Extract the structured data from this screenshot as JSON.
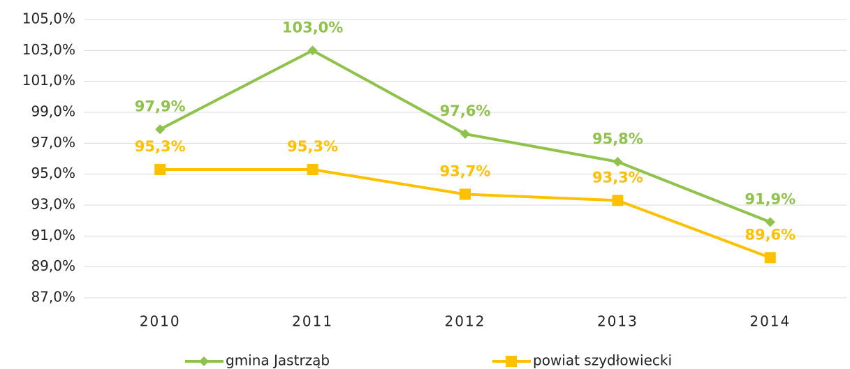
{
  "chart_data": {
    "type": "line",
    "categories": [
      "2010",
      "2011",
      "2012",
      "2013",
      "2014"
    ],
    "series": [
      {
        "name": "gmina Jastrząb",
        "color": "#8fc24a",
        "marker": "diamond",
        "values": [
          97.9,
          103.0,
          97.6,
          95.8,
          91.9
        ],
        "value_labels": [
          "97,9%",
          "103,0%",
          "97,6%",
          "95,8%",
          "91,9%"
        ]
      },
      {
        "name": "powiat szydłowiecki",
        "color": "#ffc000",
        "marker": "square",
        "values": [
          95.3,
          95.3,
          93.7,
          93.3,
          89.6
        ],
        "value_labels": [
          "95,3%",
          "95,3%",
          "93,7%",
          "93,3%",
          "89,6%"
        ]
      }
    ],
    "ylim": [
      87,
      105
    ],
    "yticks": [
      {
        "value": 87,
        "label": "87,0%"
      },
      {
        "value": 89,
        "label": "89,0%"
      },
      {
        "value": 91,
        "label": "91,0%"
      },
      {
        "value": 93,
        "label": "93,0%"
      },
      {
        "value": 95,
        "label": "95,0%"
      },
      {
        "value": 97,
        "label": "97,0%"
      },
      {
        "value": 99,
        "label": "99,0%"
      },
      {
        "value": 101,
        "label": "101,0%"
      },
      {
        "value": 103,
        "label": "103,0%"
      },
      {
        "value": 105,
        "label": "105,0%"
      }
    ],
    "grid": true,
    "legend": "bottom"
  }
}
